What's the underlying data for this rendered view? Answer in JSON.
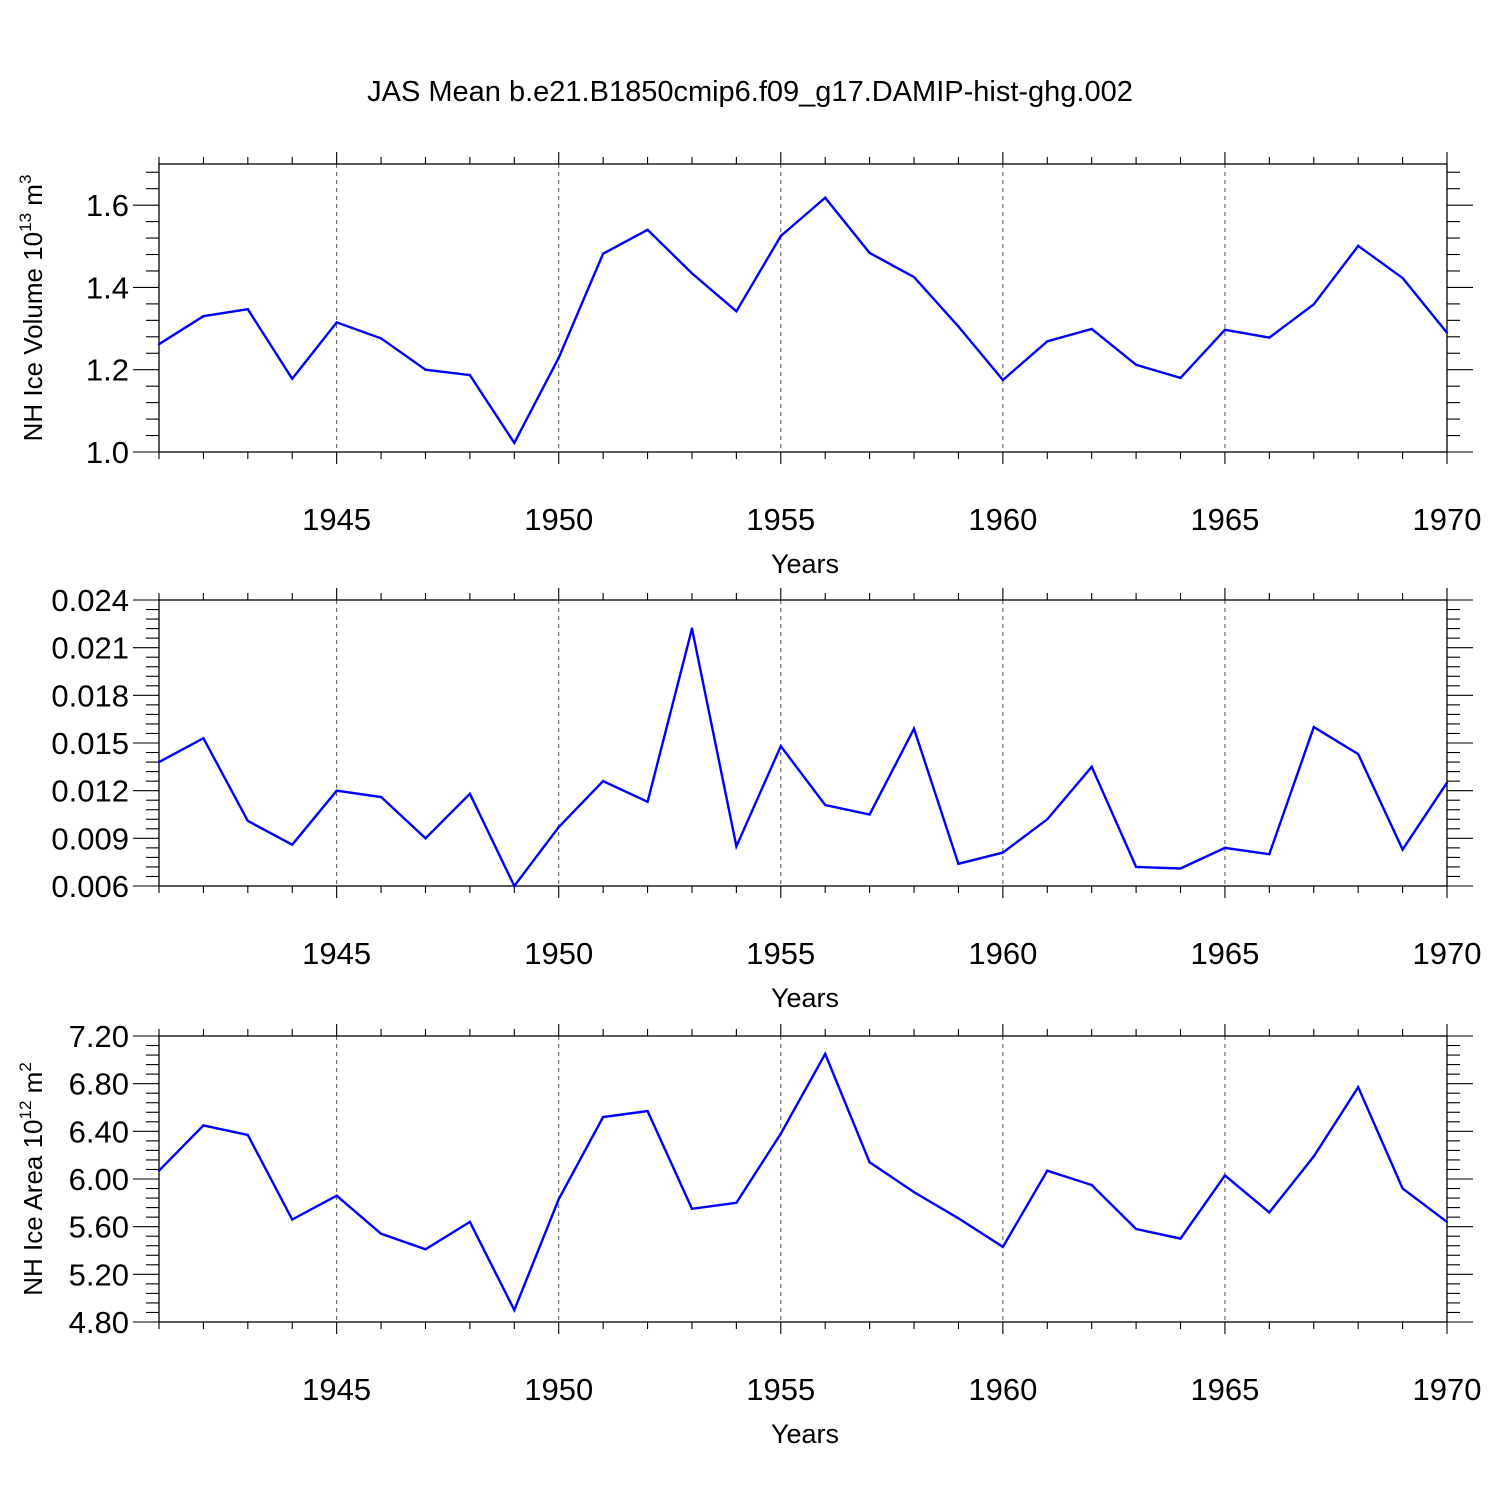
{
  "title": "JAS Mean b.e21.B1850cmip6.f09_g17.DAMIP-hist-ghg.002",
  "colors": {
    "line": "#0000ff",
    "axis": "#000000",
    "grid": "#555555"
  },
  "chart_data": [
    {
      "type": "line",
      "ylabel": "NH Ice Volume 10",
      "ylabel_sup": "13",
      "ylabel_unit": " m",
      "ylabel_unit_sup": "3",
      "xlabel": "Years",
      "xlim": [
        1941,
        1970
      ],
      "ylim": [
        1.0,
        1.7
      ],
      "yticks": [
        "1.0",
        "1.2",
        "1.4",
        "1.6"
      ],
      "xticks": [
        "1945",
        "1950",
        "1955",
        "1960",
        "1965",
        "1970"
      ],
      "grid_x": true,
      "x": [
        1941,
        1942,
        1943,
        1944,
        1945,
        1946,
        1947,
        1948,
        1949,
        1950,
        1951,
        1952,
        1953,
        1954,
        1955,
        1956,
        1957,
        1958,
        1959,
        1960,
        1961,
        1962,
        1963,
        1964,
        1965,
        1966,
        1967,
        1968,
        1969,
        1970
      ],
      "values": [
        1.262,
        1.33,
        1.347,
        1.178,
        1.315,
        1.276,
        1.2,
        1.187,
        1.022,
        1.229,
        1.482,
        1.54,
        1.434,
        1.342,
        1.525,
        1.618,
        1.484,
        1.425,
        1.305,
        1.175,
        1.269,
        1.299,
        1.212,
        1.18,
        1.297,
        1.278,
        1.359,
        1.501,
        1.423,
        1.29
      ]
    },
    {
      "type": "line",
      "ylabel": "",
      "xlabel": "Years",
      "xlim": [
        1941,
        1970
      ],
      "ylim": [
        0.006,
        0.024
      ],
      "yticks": [
        "0.006",
        "0.009",
        "0.012",
        "0.015",
        "0.018",
        "0.021",
        "0.024"
      ],
      "xticks": [
        "1945",
        "1950",
        "1955",
        "1960",
        "1965",
        "1970"
      ],
      "grid_x": true,
      "x": [
        1941,
        1942,
        1943,
        1944,
        1945,
        1946,
        1947,
        1948,
        1949,
        1950,
        1951,
        1952,
        1953,
        1954,
        1955,
        1956,
        1957,
        1958,
        1959,
        1960,
        1961,
        1962,
        1963,
        1964,
        1965,
        1966,
        1967,
        1968,
        1969,
        1970
      ],
      "values": [
        0.0138,
        0.0153,
        0.0101,
        0.0086,
        0.012,
        0.0116,
        0.009,
        0.0118,
        0.006,
        0.0097,
        0.0126,
        0.0113,
        0.0222,
        0.0085,
        0.0148,
        0.0111,
        0.0105,
        0.0159,
        0.0074,
        0.0081,
        0.0102,
        0.0135,
        0.0072,
        0.0071,
        0.0084,
        0.008,
        0.016,
        0.0143,
        0.0083,
        0.0125
      ]
    },
    {
      "type": "line",
      "ylabel": "NH Ice Area 10",
      "ylabel_sup": "12",
      "ylabel_unit": " m",
      "ylabel_unit_sup": "2",
      "xlabel": "Years",
      "xlim": [
        1941,
        1970
      ],
      "ylim": [
        4.8,
        7.2
      ],
      "yticks": [
        "4.80",
        "5.20",
        "5.60",
        "6.00",
        "6.40",
        "6.80",
        "7.20"
      ],
      "xticks": [
        "1945",
        "1950",
        "1955",
        "1960",
        "1965",
        "1970"
      ],
      "grid_x": true,
      "x": [
        1941,
        1942,
        1943,
        1944,
        1945,
        1946,
        1947,
        1948,
        1949,
        1950,
        1951,
        1952,
        1953,
        1954,
        1955,
        1956,
        1957,
        1958,
        1959,
        1960,
        1961,
        1962,
        1963,
        1964,
        1965,
        1966,
        1967,
        1968,
        1969,
        1970
      ],
      "values": [
        6.07,
        6.45,
        6.37,
        5.66,
        5.86,
        5.54,
        5.41,
        5.64,
        4.9,
        5.83,
        6.52,
        6.57,
        5.75,
        5.8,
        6.38,
        7.05,
        6.14,
        5.89,
        5.67,
        5.43,
        6.07,
        5.95,
        5.58,
        5.5,
        6.03,
        5.72,
        6.19,
        6.77,
        5.92,
        5.64
      ]
    }
  ]
}
